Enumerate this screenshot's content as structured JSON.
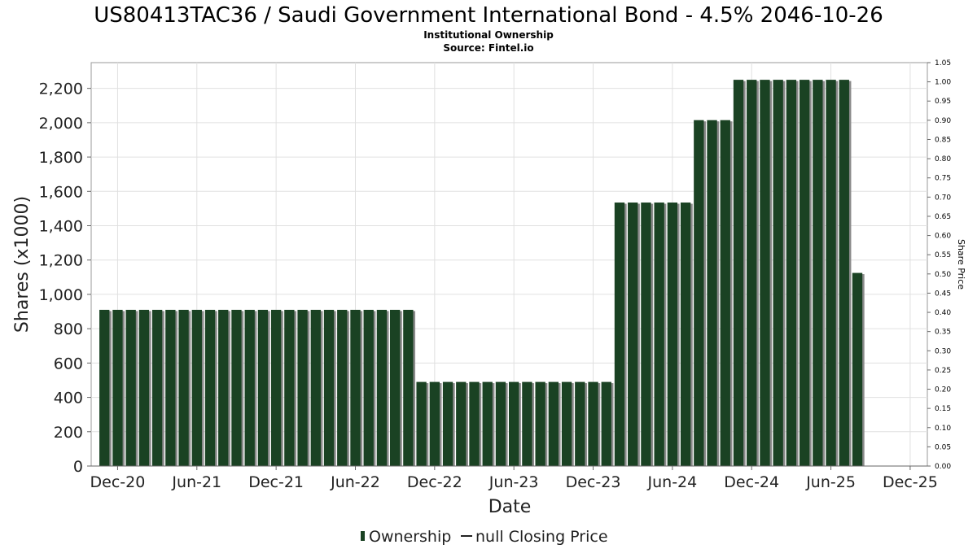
{
  "chart_data": {
    "type": "bar",
    "title": "US80413TAC36 / Saudi Government International Bond - 4.5% 2046-10-26",
    "subtitle_lines": [
      "Institutional Ownership",
      "Source: Fintel.io"
    ],
    "xlabel": "Date",
    "ylabel": "Shares (x1000)",
    "y2label": "Share Price",
    "ylim": [
      0,
      2350
    ],
    "y_ticks": [
      0,
      200,
      400,
      600,
      800,
      1000,
      1200,
      1400,
      1600,
      1800,
      2000,
      2200
    ],
    "y_tick_labels": [
      "0",
      "200",
      "400",
      "600",
      "800",
      "1,000",
      "1,200",
      "1,400",
      "1,600",
      "1,800",
      "2,000",
      "2,200"
    ],
    "y2lim": [
      0,
      1.05
    ],
    "y2_tick_labels": [
      "0.00",
      "0.05",
      "0.10",
      "0.15",
      "0.20",
      "0.25",
      "0.30",
      "0.35",
      "0.40",
      "0.45",
      "0.50",
      "0.55",
      "0.60",
      "0.65",
      "0.70",
      "0.75",
      "0.80",
      "0.85",
      "0.90",
      "0.95",
      "1.00",
      "1.05"
    ],
    "x_tick_labels": [
      "Dec-20",
      "Jun-21",
      "Dec-21",
      "Jun-22",
      "Dec-22",
      "Jun-23",
      "Dec-23",
      "Jun-24",
      "Dec-24",
      "Jun-25",
      "Dec-25"
    ],
    "grid": true,
    "series": [
      {
        "name": "Ownership",
        "color": "#1a4223",
        "shadow": "#8a8a8a",
        "values": [
          910,
          910,
          910,
          910,
          910,
          910,
          910,
          910,
          910,
          910,
          910,
          910,
          910,
          910,
          910,
          910,
          910,
          910,
          910,
          910,
          910,
          910,
          910,
          910,
          490,
          490,
          490,
          490,
          490,
          490,
          490,
          490,
          490,
          490,
          490,
          490,
          490,
          490,
          490,
          1535,
          1535,
          1535,
          1535,
          1535,
          1535,
          2015,
          2015,
          2015,
          2250,
          2250,
          2250,
          2250,
          2250,
          2250,
          2250,
          2250,
          2250,
          1125
        ]
      }
    ],
    "legend": {
      "position": "bottom-center",
      "items": [
        "Ownership",
        "null Closing Price"
      ]
    }
  }
}
